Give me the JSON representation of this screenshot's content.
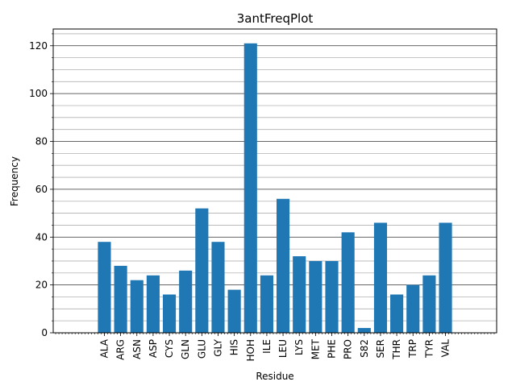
{
  "chart_data": {
    "type": "bar",
    "title": "3antFreqPlot",
    "xlabel": "Residue",
    "ylabel": "Frequency",
    "categories": [
      "ALA",
      "ARG",
      "ASN",
      "ASP",
      "CYS",
      "GLN",
      "GLU",
      "GLY",
      "HIS",
      "HOH",
      "ILE",
      "LEU",
      "LYS",
      "MET",
      "PHE",
      "PRO",
      "S82",
      "SER",
      "THR",
      "TRP",
      "TYR",
      "VAL"
    ],
    "values": [
      38,
      28,
      22,
      24,
      16,
      26,
      52,
      38,
      18,
      121,
      24,
      56,
      32,
      30,
      30,
      42,
      2,
      46,
      16,
      20,
      24,
      46
    ],
    "ylim": [
      0,
      127
    ],
    "yticks": [
      0,
      20,
      40,
      60,
      80,
      100,
      120
    ],
    "yticks_minor_step": 5,
    "grid": "major and minor horizontal",
    "bar_color": "#1f77b4",
    "major_grid_color": "#333333",
    "minor_grid_color": "#b0b0b0"
  }
}
